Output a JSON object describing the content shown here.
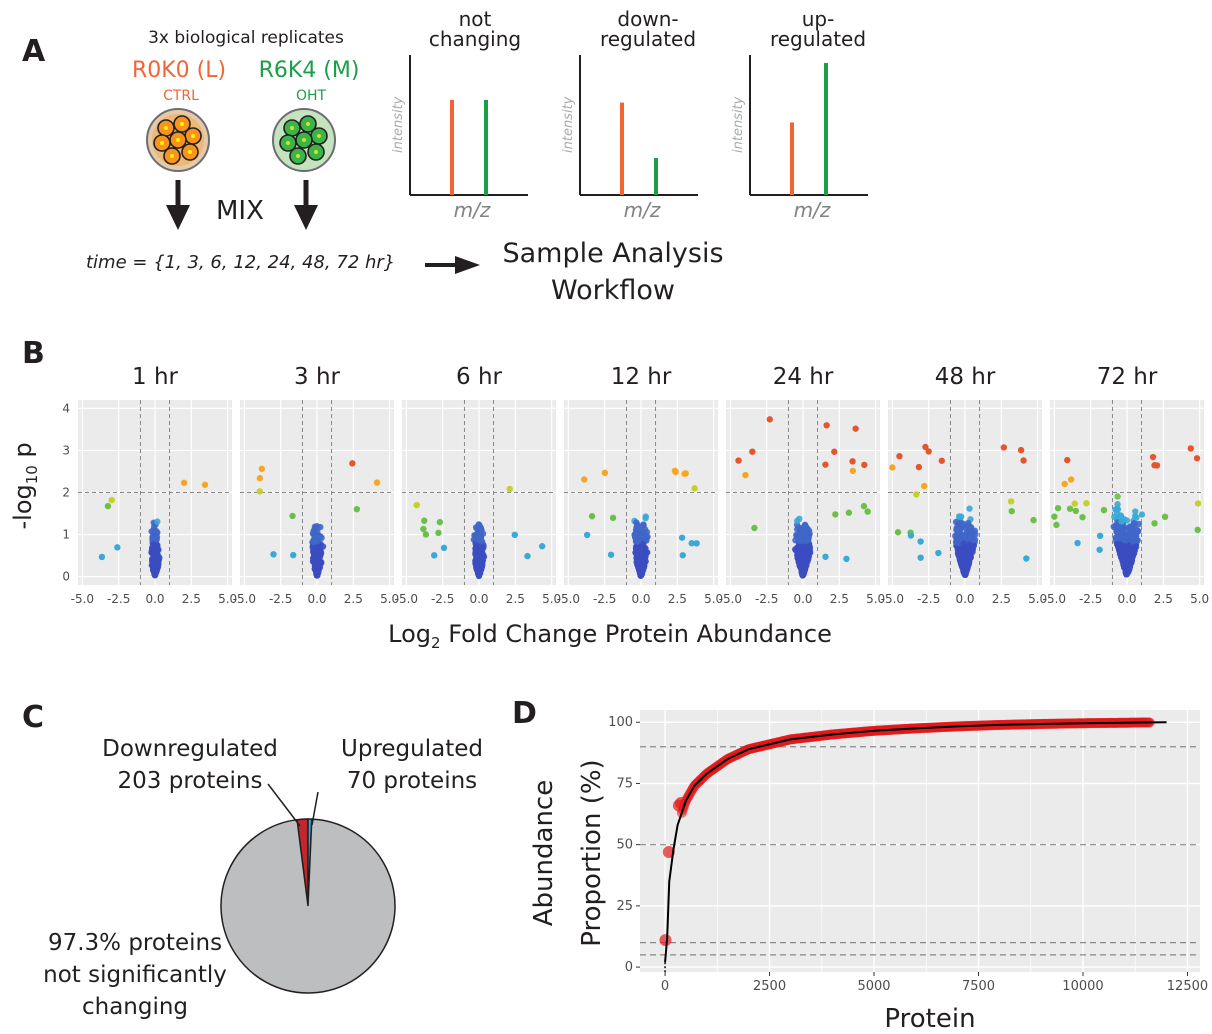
{
  "panel_a": {
    "label": "A",
    "replicates": "3x biological replicates",
    "light": {
      "name": "R0K0 (L)",
      "condition": "CTRL"
    },
    "medium": {
      "name": "R6K4 (M)",
      "condition": "OHT"
    },
    "mix": "MIX",
    "time": "time = {1, 3, 6, 12, 24, 48, 72 hr}",
    "workflow_line1": "Sample Analysis",
    "workflow_line2": "Workflow",
    "spectra": [
      {
        "title_line1": "not",
        "title_line2": "changing",
        "light_intensity": 0.72,
        "medium_intensity": 0.72
      },
      {
        "title_line1": "down-",
        "title_line2": "regulated",
        "light_intensity": 0.7,
        "medium_intensity": 0.28
      },
      {
        "title_line1": "up-",
        "title_line2": "regulated",
        "light_intensity": 0.55,
        "medium_intensity": 1.0
      }
    ],
    "ylabel": "intensity",
    "xlabel": "m/z",
    "colors": {
      "light": "#f26534",
      "medium": "#1b9e48"
    }
  },
  "panel_b": {
    "label": "B",
    "ylabel": "-log",
    "ylabel_sub": "10",
    "ylabel_tail": " p",
    "xlabel": "Log",
    "xlabel_sub": "2",
    "xlabel_tail": " Fold Change Protein Abundance",
    "y_ticks": [
      "0",
      "1",
      "2",
      "3",
      "4"
    ],
    "x_ticks": [
      "-5.0",
      "-2.5",
      "0.0",
      "2.5",
      "5.0"
    ],
    "timepoints": [
      "1 hr",
      "3 hr",
      "6 hr",
      "12 hr",
      "24 hr",
      "48 hr",
      "72 hr"
    ]
  },
  "panel_c": {
    "label": "C",
    "down_line1": "Downregulated",
    "down_line2": "203 proteins",
    "up_line1": "Upregulated",
    "up_line2": "70 proteins",
    "rest_line1": "97.3% proteins",
    "rest_line2": "not significantly",
    "rest_line3": "changing",
    "chart_data": {
      "type": "pie",
      "slices": [
        {
          "label": "Downregulated",
          "value": 203,
          "color": "#c1272d"
        },
        {
          "label": "Upregulated",
          "value": 70,
          "color": "#29abe2"
        },
        {
          "label": "not significantly changing",
          "value": 9827,
          "color": "#bcbec0"
        }
      ]
    }
  },
  "panel_d": {
    "label": "D",
    "ylabel_line1": "Abundance",
    "ylabel_line2": "Proportion (%)",
    "xlabel": "Protein",
    "x_ticks": [
      "0",
      "2500",
      "5000",
      "7500",
      "10000",
      "12500"
    ],
    "y_ticks": [
      "0",
      "25",
      "50",
      "75",
      "100"
    ],
    "chart_data": {
      "type": "line",
      "xlim": [
        -600,
        12800
      ],
      "ylim": [
        -2,
        105
      ],
      "x": [
        0,
        50,
        100,
        200,
        300,
        500,
        700,
        1000,
        1500,
        2000,
        2500,
        3000,
        4000,
        5000,
        6000,
        7000,
        8000,
        9000,
        10000,
        11000,
        12000
      ],
      "y": [
        2,
        12,
        35,
        48,
        58,
        68,
        74,
        79,
        85,
        89,
        91,
        93,
        95,
        96.5,
        97.5,
        98.3,
        98.9,
        99.3,
        99.6,
        99.8,
        100
      ],
      "hlines": [
        5,
        10,
        50,
        90
      ],
      "highlight_points": [
        {
          "x": 10,
          "y": 11
        },
        {
          "x": 90,
          "y": 47
        },
        {
          "x": 330,
          "y": 66
        },
        {
          "x": 380,
          "y": 67
        }
      ]
    }
  }
}
